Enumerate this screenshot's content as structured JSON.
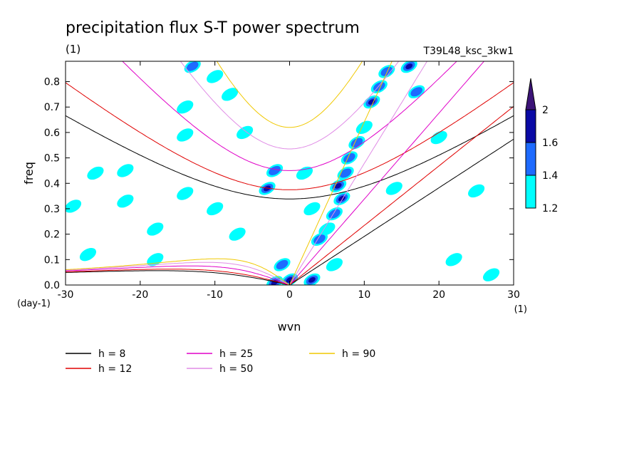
{
  "chart_data": {
    "type": "heatmap",
    "title": "precipitation flux S-T power spectrum",
    "subtitle_left": "(1)",
    "subtitle_right": "T39L48_ksc_3kw1",
    "xlabel": "wvn",
    "ylabel": "freq",
    "x_unit": "(1)",
    "y_unit": "(day-1)",
    "xlim": [
      -30,
      30
    ],
    "ylim": [
      0,
      0.88
    ],
    "x_ticks": [
      -30,
      -20,
      -10,
      0,
      10,
      20,
      30
    ],
    "y_ticks": [
      0.0,
      0.1,
      0.2,
      0.3,
      0.4,
      0.5,
      0.6,
      0.7,
      0.8
    ],
    "colorbar": {
      "levels": [
        1.2,
        1.4,
        1.6,
        2
      ],
      "colors": [
        "#00ffff",
        "#1e6bff",
        "#0a0aa5",
        "#3c1478"
      ],
      "extend": "max"
    },
    "contour_blobs": [
      {
        "x": 6.5,
        "y": 0.39,
        "level": 3
      },
      {
        "x": 7.5,
        "y": 0.44,
        "level": 2
      },
      {
        "x": 7,
        "y": 0.34,
        "level": 3
      },
      {
        "x": 8,
        "y": 0.5,
        "level": 2
      },
      {
        "x": 9,
        "y": 0.56,
        "level": 2
      },
      {
        "x": 10,
        "y": 0.62,
        "level": 1
      },
      {
        "x": 11,
        "y": 0.72,
        "level": 3
      },
      {
        "x": 12,
        "y": 0.78,
        "level": 2
      },
      {
        "x": 13,
        "y": 0.84,
        "level": 2
      },
      {
        "x": 16,
        "y": 0.86,
        "level": 3
      },
      {
        "x": 17,
        "y": 0.76,
        "level": 2
      },
      {
        "x": 6,
        "y": 0.28,
        "level": 2
      },
      {
        "x": 5,
        "y": 0.22,
        "level": 1
      },
      {
        "x": 4,
        "y": 0.18,
        "level": 2
      },
      {
        "x": -3,
        "y": 0.38,
        "level": 3
      },
      {
        "x": -2,
        "y": 0.01,
        "level": 3
      },
      {
        "x": 0,
        "y": 0.02,
        "level": 3
      },
      {
        "x": 3,
        "y": 0.02,
        "level": 3
      },
      {
        "x": -1,
        "y": 0.08,
        "level": 2
      },
      {
        "x": 6,
        "y": 0.08,
        "level": 1
      },
      {
        "x": -13,
        "y": 0.86,
        "level": 2
      },
      {
        "x": -10,
        "y": 0.82,
        "level": 1
      },
      {
        "x": -8,
        "y": 0.75,
        "level": 1
      },
      {
        "x": -14,
        "y": 0.7,
        "level": 1
      },
      {
        "x": -14,
        "y": 0.59,
        "level": 1
      },
      {
        "x": -26,
        "y": 0.44,
        "level": 1
      },
      {
        "x": -22,
        "y": 0.45,
        "level": 1
      },
      {
        "x": -29,
        "y": 0.31,
        "level": 1
      },
      {
        "x": -22,
        "y": 0.33,
        "level": 1
      },
      {
        "x": -14,
        "y": 0.36,
        "level": 1
      },
      {
        "x": -10,
        "y": 0.3,
        "level": 1
      },
      {
        "x": -18,
        "y": 0.22,
        "level": 1
      },
      {
        "x": -7,
        "y": 0.2,
        "level": 1
      },
      {
        "x": 2,
        "y": 0.44,
        "level": 1
      },
      {
        "x": -2,
        "y": 0.45,
        "level": 2
      },
      {
        "x": 20,
        "y": 0.58,
        "level": 1
      },
      {
        "x": 25,
        "y": 0.37,
        "level": 1
      },
      {
        "x": 22,
        "y": 0.1,
        "level": 1
      },
      {
        "x": 27,
        "y": 0.04,
        "level": 1
      },
      {
        "x": 14,
        "y": 0.38,
        "level": 1
      },
      {
        "x": -27,
        "y": 0.12,
        "level": 1
      },
      {
        "x": -18,
        "y": 0.1,
        "level": 1
      },
      {
        "x": -6,
        "y": 0.6,
        "level": 1
      },
      {
        "x": 3,
        "y": 0.3,
        "level": 1
      }
    ],
    "series": [
      {
        "name": "h = 8",
        "h": 8,
        "color": "#000000"
      },
      {
        "name": "h = 12",
        "h": 12,
        "color": "#e00000"
      },
      {
        "name": "h = 25",
        "h": 25,
        "color": "#e000c8"
      },
      {
        "name": "h = 50",
        "h": 50,
        "color": "#e08ce6"
      },
      {
        "name": "h = 90",
        "h": 90,
        "color": "#f0c800"
      }
    ],
    "legend_layout": [
      {
        "series": 0,
        "col": 0,
        "row": 0
      },
      {
        "series": 1,
        "col": 0,
        "row": 1
      },
      {
        "series": 2,
        "col": 1,
        "row": 0
      },
      {
        "series": 3,
        "col": 1,
        "row": 1
      },
      {
        "series": 4,
        "col": 2,
        "row": 0
      }
    ]
  }
}
